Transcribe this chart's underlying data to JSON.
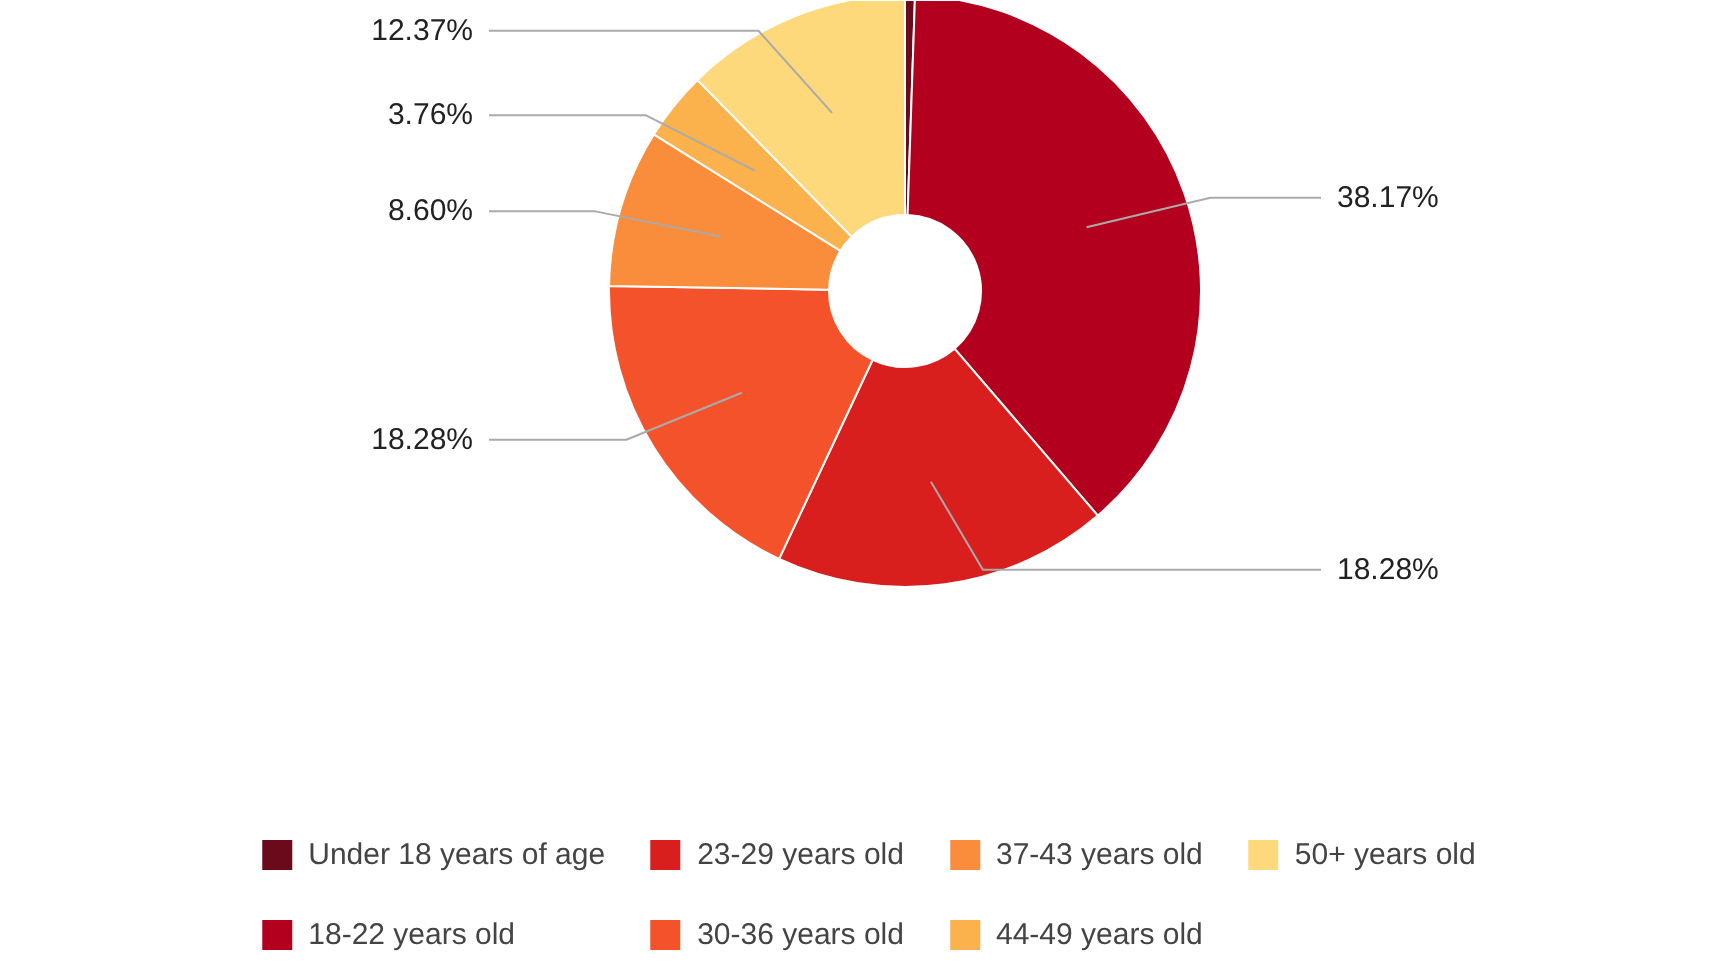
{
  "chart_data": {
    "type": "donut",
    "categories": [
      "Under 18 years of age",
      "18-22 years old",
      "23-29 years old",
      "30-36 years old",
      "37-43 years old",
      "44-49 years old",
      "50+ years old"
    ],
    "values": [
      0.54,
      38.17,
      18.28,
      18.28,
      8.6,
      3.76,
      12.37
    ],
    "value_labels": [
      null,
      "38.17%",
      "18.28%",
      "18.28%",
      "8.60%",
      "3.76%",
      "12.37%"
    ],
    "colors": [
      "#6b0a1a",
      "#b3001f",
      "#d91e1e",
      "#f4522b",
      "#f98d3c",
      "#fbb14c",
      "#fdd97c"
    ],
    "legend": "bottom"
  }
}
